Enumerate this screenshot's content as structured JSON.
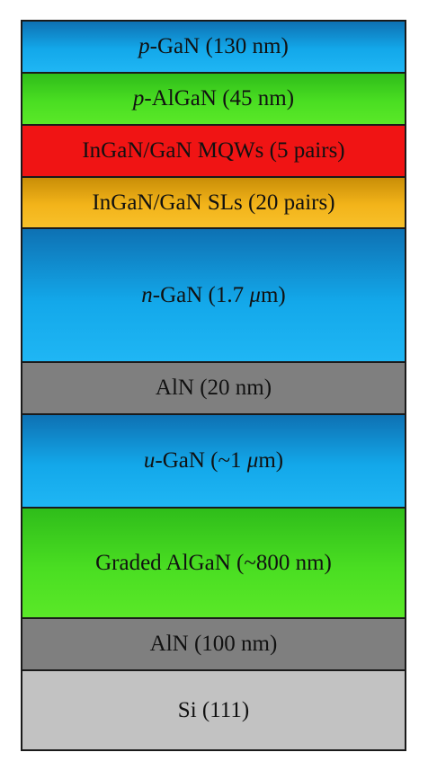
{
  "layers": [
    {
      "prefix": "p",
      "text": "-GaN (130 nm)",
      "color": "#13a8ea"
    },
    {
      "prefix": "p",
      "text": "-AlGaN (45 nm)",
      "color": "#4ade22"
    },
    {
      "prefix": "",
      "text": "InGaN/GaN MQWs (5 pairs)",
      "color": "#f01414"
    },
    {
      "prefix": "",
      "text": "InGaN/GaN SLs (20 pairs)",
      "color": "#f3b41a"
    },
    {
      "prefix": "n",
      "text": "-GaN (1.7 ",
      "unit_symbol": "μ",
      "unit_rest": "m)",
      "color": "#13a8ea"
    },
    {
      "prefix": "",
      "text": "AlN (20 nm)",
      "color": "#7f7f7f"
    },
    {
      "prefix": "u",
      "text": "-GaN (~1 ",
      "unit_symbol": "μ",
      "unit_rest": "m)",
      "color": "#13a8ea"
    },
    {
      "prefix": "",
      "text": "Graded AlGaN (~800 nm)",
      "color": "#4ade22"
    },
    {
      "prefix": "",
      "text": "AlN (100 nm)",
      "color": "#7f7f7f"
    },
    {
      "prefix": "",
      "text": "Si (111)",
      "color": "#c2c2c2"
    }
  ]
}
